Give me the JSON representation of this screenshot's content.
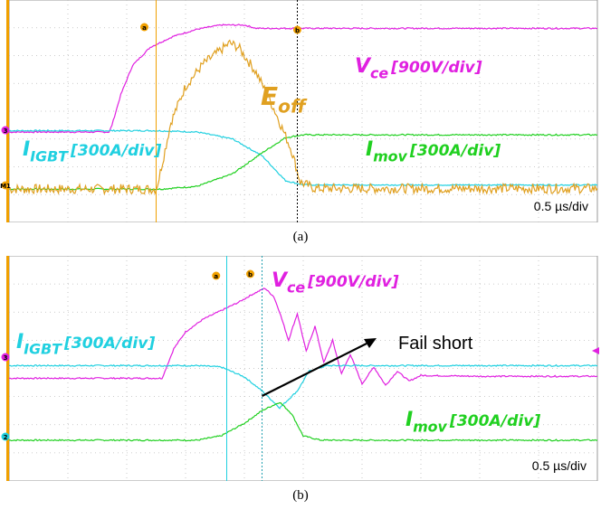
{
  "chart_data": [
    {
      "type": "line",
      "caption": "(a)",
      "timebase": "0.5 µs/div",
      "grid": true,
      "divisions": {
        "x": 10,
        "y": 8
      },
      "cursor_markers": [
        "a",
        "b"
      ],
      "channel_markers": [
        "3",
        "M1"
      ],
      "series": [
        {
          "name": "V_ce [900V/div]",
          "label_main": "V",
          "label_sub": "ce",
          "label_scale": "[900V/div]",
          "color": "#e020e0",
          "x": [
            0,
            1.7,
            1.75,
            1.9,
            2.1,
            2.4,
            2.8,
            3.2,
            3.6,
            4.0,
            4.2,
            4.5,
            5,
            6,
            7,
            8,
            9,
            10
          ],
          "y": [
            3.25,
            3.25,
            3.5,
            4.6,
            5.65,
            6.3,
            6.7,
            6.95,
            7.1,
            7.1,
            6.98,
            6.98,
            6.98,
            6.98,
            6.98,
            6.98,
            6.98,
            6.98
          ]
        },
        {
          "name": "I_IGBT [300A/div]",
          "label_main": "I",
          "label_sub": "IGBT",
          "label_scale": "[300A/div]",
          "color": "#20d0e0",
          "x": [
            0,
            2.5,
            3.2,
            3.8,
            4.3,
            4.7,
            5.0,
            6,
            7,
            8,
            9,
            10
          ],
          "y": [
            3.3,
            3.3,
            3.25,
            3.0,
            2.4,
            1.5,
            1.35,
            1.35,
            1.35,
            1.35,
            1.35,
            1.35
          ]
        },
        {
          "name": "I_mov [300A/div]",
          "label_main": "I",
          "label_sub": "mov",
          "label_scale": "[300A/div]",
          "color": "#20d020",
          "x": [
            0,
            2.6,
            3.2,
            3.8,
            4.3,
            4.7,
            5.0,
            6,
            7,
            8,
            9,
            10
          ],
          "y": [
            1.2,
            1.2,
            1.3,
            1.75,
            2.5,
            3.05,
            3.15,
            3.15,
            3.15,
            3.15,
            3.15,
            3.15
          ]
        },
        {
          "name": "E_off",
          "label_main": "E",
          "label_sub": "off",
          "label_scale": "",
          "color": "#e0a020",
          "x": [
            0,
            2.5,
            2.55,
            2.75,
            3.0,
            3.3,
            3.6,
            3.75,
            3.9,
            4.2,
            4.5,
            4.8,
            4.95,
            5.2,
            10
          ],
          "y": [
            1.2,
            1.2,
            1.6,
            3.6,
            4.9,
            5.7,
            6.2,
            6.45,
            6.3,
            5.4,
            4.1,
            2.6,
            1.45,
            1.22,
            1.22
          ]
        }
      ]
    },
    {
      "type": "line",
      "caption": "(b)",
      "timebase": "0.5 µs/div",
      "annotation": "Fail short",
      "grid": true,
      "divisions": {
        "x": 10,
        "y": 8
      },
      "cursor_markers": [
        "a",
        "b"
      ],
      "channel_markers": [
        "3",
        "2"
      ],
      "series": [
        {
          "name": "V_ce [900V/div]",
          "label_main": "V",
          "label_sub": "ce",
          "label_scale": "[900V/div]",
          "color": "#e020e0",
          "x": [
            0,
            2.6,
            2.65,
            2.8,
            3.0,
            3.3,
            3.6,
            3.9,
            4.15,
            4.35,
            4.5,
            4.6,
            4.75,
            4.9,
            5.05,
            5.2,
            5.35,
            5.5,
            5.65,
            5.8,
            6.0,
            6.2,
            6.4,
            6.6,
            6.8,
            7,
            8,
            9,
            10
          ],
          "y": [
            3.65,
            3.65,
            3.9,
            4.7,
            5.3,
            5.75,
            6.05,
            6.35,
            6.65,
            6.85,
            6.55,
            6.0,
            5.0,
            5.95,
            4.6,
            5.5,
            4.2,
            5.0,
            3.8,
            4.5,
            3.45,
            4.05,
            3.4,
            3.9,
            3.55,
            3.75,
            3.72,
            3.72,
            3.72
          ]
        },
        {
          "name": "I_IGBT [300A/div]",
          "label_main": "I",
          "label_sub": "IGBT",
          "label_scale": "[300A/div]",
          "color": "#20d0e0",
          "x": [
            0,
            3.2,
            3.6,
            4.0,
            4.3,
            4.6,
            4.9,
            5.1,
            5.4,
            6,
            7,
            8,
            9,
            10
          ],
          "y": [
            4.1,
            4.1,
            4.05,
            3.7,
            3.2,
            2.6,
            3.2,
            3.9,
            4.1,
            4.1,
            4.1,
            4.1,
            4.1,
            4.1
          ]
        },
        {
          "name": "I_mov [300A/div]",
          "label_main": "I",
          "label_sub": "mov",
          "label_scale": "[300A/div]",
          "color": "#20d020",
          "x": [
            0,
            3.2,
            3.6,
            4.0,
            4.3,
            4.6,
            4.8,
            5.0,
            5.3,
            6,
            7,
            8,
            9,
            10
          ],
          "y": [
            1.45,
            1.45,
            1.6,
            2.05,
            2.5,
            2.8,
            2.4,
            1.6,
            1.45,
            1.45,
            1.45,
            1.45,
            1.45,
            1.45
          ]
        }
      ]
    }
  ]
}
